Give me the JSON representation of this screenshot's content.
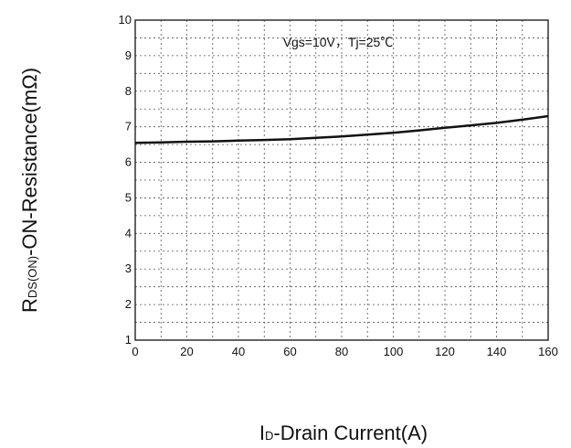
{
  "chart_data": {
    "type": "line",
    "title": "",
    "annotation": "Vgs=10V，Tj=25℃",
    "xlabel": {
      "main": "I",
      "sub": "D",
      "rest": "-Drain Current(A)"
    },
    "ylabel": {
      "main": "R",
      "sub": "DS(ON)",
      "rest": "-ON-Resistance(mΩ)"
    },
    "xlim": [
      0,
      160
    ],
    "ylim": [
      1,
      10
    ],
    "xticks": [
      0,
      20,
      40,
      60,
      80,
      100,
      120,
      140,
      160
    ],
    "yticks": [
      1,
      2,
      3,
      4,
      5,
      6,
      7,
      8,
      9,
      10
    ],
    "grid": true,
    "series": [
      {
        "x": [
          0,
          10,
          20,
          30,
          40,
          50,
          60,
          70,
          80,
          90,
          100,
          110,
          120,
          130,
          140,
          150,
          160
        ],
        "y": [
          6.55,
          6.56,
          6.58,
          6.59,
          6.61,
          6.63,
          6.65,
          6.69,
          6.73,
          6.78,
          6.83,
          6.9,
          6.97,
          7.04,
          7.11,
          7.2,
          7.3
        ]
      }
    ]
  }
}
